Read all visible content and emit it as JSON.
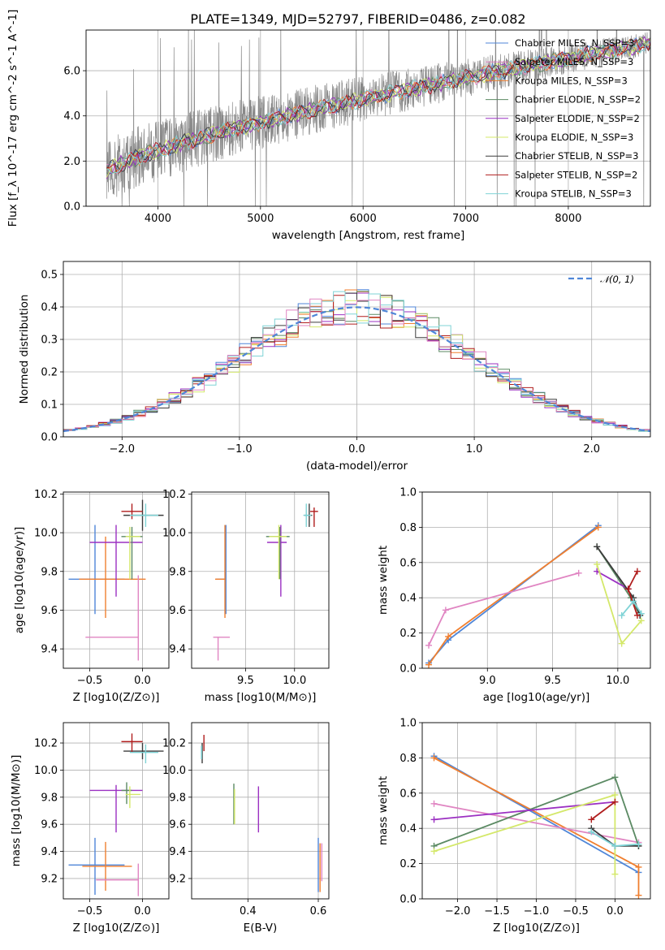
{
  "figure_title": "PLATE=1349, MJD=52797, FIBERID=0486, z=0.082",
  "colors": [
    "#4f86d8",
    "#f07f2f",
    "#5b8a63",
    "#9b30c2",
    "#d4e86a",
    "#3c3c3c",
    "#b01d1d",
    "#7fd3d6",
    "#e085c2",
    "#888888"
  ],
  "chart_data": [
    {
      "name": "spectrum",
      "type": "line",
      "xlabel": "wavelength [Angstrom, rest frame]",
      "ylabel": "Flux [f_λ 10^-17 erg cm^-2 s^-1 A^-1]",
      "xlim": [
        3300,
        8800
      ],
      "ylim": [
        0,
        7.8
      ],
      "xticks": [
        4000,
        5000,
        6000,
        7000,
        8000
      ],
      "yticks": [
        0,
        2,
        4,
        6
      ],
      "data_line": {
        "color": "#888888",
        "x_start": 3500,
        "x_end": 8800,
        "y_start": 1.5,
        "y_end": 7.2,
        "noise": 0.9
      },
      "legend_position": "upper-right",
      "series": [
        {
          "name": "Chabrier MILES, N_SSP=3",
          "color": "#4f86d8"
        },
        {
          "name": "Salpeter MILES, N_SSP=3",
          "color": "#e085c2"
        },
        {
          "name": "Kroupa MILES, N_SSP=3",
          "color": "#f07f2f"
        },
        {
          "name": "Chabrier ELODIE, N_SSP=2",
          "color": "#5b8a63"
        },
        {
          "name": "Salpeter ELODIE, N_SSP=2",
          "color": "#9b30c2"
        },
        {
          "name": "Kroupa ELODIE, N_SSP=3",
          "color": "#d4e86a"
        },
        {
          "name": "Chabrier STELIB, N_SSP=3",
          "color": "#3c3c3c"
        },
        {
          "name": "Salpeter STELIB, N_SSP=2",
          "color": "#b01d1d"
        },
        {
          "name": "Kroupa STELIB, N_SSP=3",
          "color": "#7fd3d6"
        }
      ]
    },
    {
      "name": "residuals",
      "type": "histogram",
      "xlabel": "(data-model)/error",
      "ylabel": "Normed distribution",
      "xlim": [
        -2.5,
        2.5
      ],
      "ylim": [
        0,
        0.54
      ],
      "xticks": [
        -2,
        -1,
        0,
        1,
        2
      ],
      "yticks": [
        0.0,
        0.1,
        0.2,
        0.3,
        0.4,
        0.5
      ],
      "bin_width": 0.1,
      "bin_start": -2.5,
      "legend": "𝒩(0, 1)",
      "legend_position": "upper-right",
      "gaussian": {
        "mean": 0,
        "sigma": 1,
        "color": "#4f86d8"
      }
    },
    {
      "name": "age_vs_Z",
      "type": "errorbar",
      "xlabel": "Z [log10(Z/Z⊙)]",
      "ylabel": "age  [log10(age/yr)]",
      "xlim": [
        -0.75,
        0.25
      ],
      "ylim": [
        9.3,
        10.21
      ],
      "xticks": [
        -0.5,
        0.0
      ],
      "yticks": [
        9.4,
        9.6,
        9.8,
        10.0,
        10.2
      ],
      "points": [
        {
          "color": "#4f86d8",
          "x": -0.45,
          "y": 9.76,
          "xerr": [
            0.25,
            0.28
          ],
          "yerr": [
            0.18,
            0.28
          ]
        },
        {
          "color": "#f07f2f",
          "x": -0.35,
          "y": 9.76,
          "xerr": [
            0.25,
            0.38
          ],
          "yerr": [
            0.2,
            0.22
          ]
        },
        {
          "color": "#e085c2",
          "x": -0.04,
          "y": 9.46,
          "xerr": [
            0.5,
            0.0
          ],
          "yerr": [
            0.12,
            0.32
          ]
        },
        {
          "color": "#9b30c2",
          "x": -0.25,
          "y": 9.95,
          "xerr": [
            0.25,
            0.25
          ],
          "yerr": [
            0.28,
            0.09
          ]
        },
        {
          "color": "#5b8a63",
          "x": -0.1,
          "y": 9.98,
          "xerr": [
            0.1,
            0.1
          ],
          "yerr": [
            0.22,
            0.05
          ]
        },
        {
          "color": "#d4e86a",
          "x": -0.12,
          "y": 9.98,
          "xerr": [
            0.04,
            0.1
          ],
          "yerr": [
            0.22,
            0.05
          ]
        },
        {
          "color": "#3c3c3c",
          "x": 0.0,
          "y": 10.09,
          "xerr": [
            0.18,
            0.2
          ],
          "yerr": [
            0.08,
            0.08
          ]
        },
        {
          "color": "#b01d1d",
          "x": -0.1,
          "y": 10.11,
          "xerr": [
            0.1,
            0.1
          ],
          "yerr": [
            0.04,
            0.04
          ]
        },
        {
          "color": "#7fd3d6",
          "x": 0.03,
          "y": 10.09,
          "xerr": [
            0.15,
            0.12
          ],
          "yerr": [
            0.06,
            0.06
          ]
        }
      ]
    },
    {
      "name": "age_vs_mass",
      "type": "errorbar",
      "xlabel": "mass [log10(M/M⊙)]",
      "ylabel": "",
      "xlim": [
        8.95,
        10.35
      ],
      "ylim": [
        9.3,
        10.21
      ],
      "xticks": [
        9.5,
        10.0
      ],
      "yticks": [
        9.4,
        9.6,
        9.8,
        10.0,
        10.2
      ],
      "points": [
        {
          "color": "#4f86d8",
          "x": 9.3,
          "y": 9.76,
          "xerr": [
            0.1,
            0.0
          ],
          "yerr": [
            0.18,
            0.28
          ]
        },
        {
          "color": "#f07f2f",
          "x": 9.29,
          "y": 9.76,
          "xerr": [
            0.1,
            0.0
          ],
          "yerr": [
            0.2,
            0.28
          ]
        },
        {
          "color": "#e085c2",
          "x": 9.22,
          "y": 9.46,
          "xerr": [
            0.05,
            0.12
          ],
          "yerr": [
            0.12,
            0.0
          ]
        },
        {
          "color": "#9b30c2",
          "x": 9.86,
          "y": 9.95,
          "xerr": [
            0.14,
            0.06
          ],
          "yerr": [
            0.28,
            0.09
          ]
        },
        {
          "color": "#5b8a63",
          "x": 9.85,
          "y": 9.98,
          "xerr": [
            0.14,
            0.1
          ],
          "yerr": [
            0.22,
            0.05
          ]
        },
        {
          "color": "#d4e86a",
          "x": 9.84,
          "y": 9.98,
          "xerr": [
            0.1,
            0.08
          ],
          "yerr": [
            0.22,
            0.06
          ]
        },
        {
          "color": "#3c3c3c",
          "x": 10.15,
          "y": 10.09,
          "xerr": [
            0.05,
            0.03
          ],
          "yerr": [
            0.06,
            0.06
          ]
        },
        {
          "color": "#b01d1d",
          "x": 10.2,
          "y": 10.11,
          "xerr": [
            0.04,
            0.04
          ],
          "yerr": [
            0.08,
            0.02
          ]
        },
        {
          "color": "#7fd3d6",
          "x": 10.12,
          "y": 10.09,
          "xerr": [
            0.03,
            0.05
          ],
          "yerr": [
            0.06,
            0.06
          ]
        }
      ]
    },
    {
      "name": "weight_vs_age",
      "type": "line",
      "xlabel": "age  [log10(age/yr)]",
      "ylabel": "mass weight",
      "xlim": [
        8.5,
        10.25
      ],
      "ylim": [
        0,
        1.0
      ],
      "xticks": [
        9.0,
        9.5,
        10.0
      ],
      "yticks": [
        0.0,
        0.2,
        0.4,
        0.6,
        0.8,
        1.0
      ],
      "series": [
        {
          "color": "#4f86d8",
          "x": [
            8.55,
            8.7,
            9.85
          ],
          "y": [
            0.03,
            0.16,
            0.81
          ]
        },
        {
          "color": "#f07f2f",
          "x": [
            8.55,
            8.7,
            9.85
          ],
          "y": [
            0.02,
            0.18,
            0.8
          ]
        },
        {
          "color": "#e085c2",
          "x": [
            8.55,
            8.68,
            9.7
          ],
          "y": [
            0.13,
            0.33,
            0.54
          ]
        },
        {
          "color": "#5b8a63",
          "x": [
            9.84,
            10.1,
            10.17
          ],
          "y": [
            0.69,
            0.4,
            0.3
          ]
        },
        {
          "color": "#9b30c2",
          "x": [
            9.84,
            10.08
          ],
          "y": [
            0.55,
            0.45
          ]
        },
        {
          "color": "#d4e86a",
          "x": [
            9.84,
            10.03,
            10.18
          ],
          "y": [
            0.59,
            0.14,
            0.27
          ]
        },
        {
          "color": "#3c3c3c",
          "x": [
            9.84,
            10.12,
            10.17
          ],
          "y": [
            0.69,
            0.4,
            0.3
          ]
        },
        {
          "color": "#b01d1d",
          "x": [
            10.15,
            10.08,
            10.15
          ],
          "y": [
            0.3,
            0.45,
            0.55
          ]
        },
        {
          "color": "#7fd3d6",
          "x": [
            10.03,
            10.12,
            10.18
          ],
          "y": [
            0.3,
            0.38,
            0.31
          ]
        }
      ]
    },
    {
      "name": "mass_vs_Z",
      "type": "errorbar",
      "xlabel": "Z [log10(Z/Z⊙)]",
      "ylabel": "mass [log10(M/M⊙)]",
      "xlim": [
        -0.75,
        0.25
      ],
      "ylim": [
        9.05,
        10.35
      ],
      "xticks": [
        -0.5,
        0.0
      ],
      "yticks": [
        9.2,
        9.4,
        9.6,
        9.8,
        10.0,
        10.2
      ],
      "points": [
        {
          "color": "#4f86d8",
          "x": -0.45,
          "y": 9.3,
          "xerr": [
            0.25,
            0.28
          ],
          "yerr": [
            0.22,
            0.2
          ]
        },
        {
          "color": "#f07f2f",
          "x": -0.35,
          "y": 9.29,
          "xerr": [
            0.22,
            0.25
          ],
          "yerr": [
            0.18,
            0.18
          ]
        },
        {
          "color": "#e085c2",
          "x": -0.04,
          "y": 9.19,
          "xerr": [
            0.4,
            0.0
          ],
          "yerr": [
            0.12,
            0.12
          ]
        },
        {
          "color": "#9b30c2",
          "x": -0.25,
          "y": 9.85,
          "xerr": [
            0.25,
            0.25
          ],
          "yerr": [
            0.31,
            0.04
          ]
        },
        {
          "color": "#5b8a63",
          "x": -0.15,
          "y": 9.85,
          "xerr": [
            0.05,
            0.05
          ],
          "yerr": [
            0.1,
            0.06
          ]
        },
        {
          "color": "#d4e86a",
          "x": -0.12,
          "y": 9.82,
          "xerr": [
            0.04,
            0.1
          ],
          "yerr": [
            0.1,
            0.06
          ]
        },
        {
          "color": "#3c3c3c",
          "x": 0.0,
          "y": 10.14,
          "xerr": [
            0.18,
            0.2
          ],
          "yerr": [
            0.06,
            0.06
          ]
        },
        {
          "color": "#b01d1d",
          "x": -0.1,
          "y": 10.21,
          "xerr": [
            0.1,
            0.1
          ],
          "yerr": [
            0.08,
            0.06
          ]
        },
        {
          "color": "#7fd3d6",
          "x": 0.03,
          "y": 10.13,
          "xerr": [
            0.15,
            0.12
          ],
          "yerr": [
            0.08,
            0.06
          ]
        }
      ]
    },
    {
      "name": "mass_vs_EBV",
      "type": "errorbar",
      "xlabel": "E(B-V)",
      "ylabel": "",
      "xlim": [
        0.24,
        0.63
      ],
      "ylim": [
        9.05,
        10.35
      ],
      "xticks": [
        0.2,
        0.4,
        0.6
      ],
      "yticks": [
        9.2,
        9.4,
        9.6,
        9.8,
        10.0,
        10.2
      ],
      "points": [
        {
          "color": "#4f86d8",
          "x": 0.6,
          "y": 9.3,
          "xerr": [
            0,
            0
          ],
          "yerr": [
            0.2,
            0.2
          ]
        },
        {
          "color": "#f07f2f",
          "x": 0.605,
          "y": 9.28,
          "xerr": [
            0,
            0
          ],
          "yerr": [
            0.18,
            0.18
          ]
        },
        {
          "color": "#e085c2",
          "x": 0.61,
          "y": 9.3,
          "xerr": [
            0,
            0
          ],
          "yerr": [
            0.12,
            0.16
          ]
        },
        {
          "color": "#9b30c2",
          "x": 0.43,
          "y": 9.7,
          "xerr": [
            0,
            0
          ],
          "yerr": [
            0.16,
            0.18
          ]
        },
        {
          "color": "#5b8a63",
          "x": 0.36,
          "y": 9.75,
          "xerr": [
            0,
            0
          ],
          "yerr": [
            0.15,
            0.15
          ]
        },
        {
          "color": "#d4e86a",
          "x": 0.362,
          "y": 9.72,
          "xerr": [
            0,
            0
          ],
          "yerr": [
            0.12,
            0.14
          ]
        },
        {
          "color": "#3c3c3c",
          "x": 0.27,
          "y": 10.1,
          "xerr": [
            0,
            0
          ],
          "yerr": [
            0.05,
            0.1
          ]
        },
        {
          "color": "#b01d1d",
          "x": 0.275,
          "y": 10.2,
          "xerr": [
            0,
            0
          ],
          "yerr": [
            0.06,
            0.06
          ]
        },
        {
          "color": "#7fd3d6",
          "x": 0.268,
          "y": 10.13,
          "xerr": [
            0,
            0
          ],
          "yerr": [
            0.05,
            0.05
          ]
        }
      ]
    },
    {
      "name": "weight_vs_Z",
      "type": "line",
      "xlabel": "Z [log10(Z/Z⊙)]",
      "ylabel": "mass weight",
      "xlim": [
        -2.45,
        0.45
      ],
      "ylim": [
        0,
        1.0
      ],
      "xticks": [
        -2.0,
        -1.5,
        -1.0,
        -0.5,
        0.0
      ],
      "yticks": [
        0.0,
        0.2,
        0.4,
        0.6,
        0.8,
        1.0
      ],
      "series": [
        {
          "color": "#4f86d8",
          "x": [
            -2.3,
            0.3
          ],
          "y": [
            0.81,
            0.15
          ]
        },
        {
          "color": "#f07f2f",
          "x": [
            -2.3,
            0.3,
            0.3
          ],
          "y": [
            0.8,
            0.18,
            0.02
          ]
        },
        {
          "color": "#e085c2",
          "x": [
            -2.3,
            0.3
          ],
          "y": [
            0.54,
            0.32
          ]
        },
        {
          "color": "#5b8a63",
          "x": [
            -2.3,
            0.0,
            0.3
          ],
          "y": [
            0.3,
            0.69,
            0.3
          ]
        },
        {
          "color": "#9b30c2",
          "x": [
            -2.3,
            0.0
          ],
          "y": [
            0.45,
            0.55
          ]
        },
        {
          "color": "#d4e86a",
          "x": [
            -2.3,
            0.0,
            0.0
          ],
          "y": [
            0.27,
            0.59,
            0.14
          ]
        },
        {
          "color": "#3c3c3c",
          "x": [
            -0.3,
            0.0,
            0.3
          ],
          "y": [
            0.4,
            0.3,
            0.3
          ]
        },
        {
          "color": "#b01d1d",
          "x": [
            -0.3,
            0.0
          ],
          "y": [
            0.45,
            0.55
          ]
        },
        {
          "color": "#7fd3d6",
          "x": [
            -0.3,
            0.0,
            0.3
          ],
          "y": [
            0.38,
            0.3,
            0.31
          ]
        }
      ]
    }
  ]
}
